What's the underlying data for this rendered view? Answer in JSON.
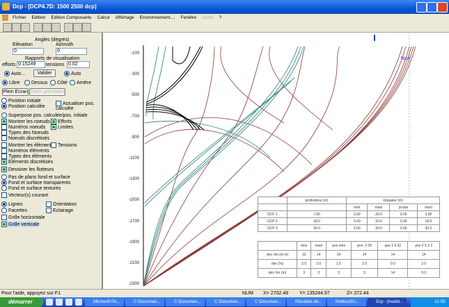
{
  "window": {
    "title": "Dcp - [DCP4.7D: 1500 2500 dcp]",
    "menu": [
      "Fichier",
      "Edition",
      "Edition Composants",
      "Calcul",
      "Affichage",
      "Environnement....",
      "Fenêtre",
      "Outils",
      "?"
    ]
  },
  "left_panel": {
    "angles_title": "Angles (degrés)",
    "elevation_label": "Elévation",
    "azimuth_label": "Azimuth",
    "elevation_value": "0",
    "azimuth_value": "0",
    "ratios_title": "Rapports de visualisation",
    "efforts_label": "efforts",
    "efforts_value": "0.15249",
    "tensions_label": "tensions",
    "tensions_value": "0.02",
    "auto_left": "Auto...",
    "validate_button": "Valider",
    "auto_right": "Auto",
    "views": [
      {
        "label": "Libre",
        "checked": true
      },
      {
        "label": "Dessus",
        "checked": false
      },
      {
        "label": "Côté",
        "checked": false
      },
      {
        "label": "Arrière",
        "checked": false
      }
    ],
    "fullscreen_button": "Plein Ecran",
    "zoom_previous_button": "Zoom précédent",
    "options": [
      [
        {
          "label": "Position initiale",
          "kind": "radio",
          "checked": false
        }
      ],
      [
        {
          "label": "Position calculée",
          "kind": "radio",
          "checked": true
        },
        {
          "label": "Actualiser pos. calculée",
          "kind": "checkbox",
          "checked": false
        }
      ],
      [
        {
          "label": "Superpose pos. calculée/pos. initiale",
          "kind": "radio",
          "checked": false
        }
      ],
      [
        {
          "label": "Montrer les noeuds",
          "kind": "checkbox",
          "checked": true
        },
        {
          "label": "Efforts",
          "kind": "checkbox",
          "checked": true
        }
      ],
      [
        {
          "label": "Numéros noeuds",
          "kind": "checkbox",
          "checked": false
        },
        {
          "label": "Limites",
          "kind": "checkbox",
          "checked": true
        }
      ],
      [
        {
          "label": "Types des Noeuds",
          "kind": "checkbox",
          "checked": false
        }
      ],
      [
        {
          "label": "Noeuds discrétisés",
          "kind": "checkbox",
          "checked": false
        }
      ],
      [
        {
          "label": "Montrer les éléments",
          "kind": "checkbox",
          "checked": false
        },
        {
          "label": "Tensions",
          "kind": "checkbox",
          "checked": false
        }
      ],
      [
        {
          "label": "Numéros éléments",
          "kind": "checkbox",
          "checked": false
        }
      ],
      [
        {
          "label": "Types des éléments",
          "kind": "checkbox",
          "checked": false
        }
      ],
      [
        {
          "label": "Eléments discrétisés",
          "kind": "checkbox",
          "checked": true
        }
      ],
      [
        {
          "label": "Dessiner les flotteurs",
          "kind": "checkbox",
          "checked": true
        }
      ],
      [
        {
          "label": "Pas de plans fond et surface",
          "kind": "radio",
          "checked": false
        }
      ],
      [
        {
          "label": "Fond et surface transparents",
          "kind": "radio",
          "checked": true
        }
      ],
      [
        {
          "label": "Fond et surface texturés",
          "kind": "radio",
          "checked": false
        }
      ],
      [
        {
          "label": "Vecteur(s) courant",
          "kind": "checkbox",
          "checked": false
        }
      ],
      [
        {
          "label": "Lignes",
          "kind": "radio",
          "checked": true
        },
        {
          "label": "Orientation",
          "kind": "checkbox",
          "checked": false
        }
      ],
      [
        {
          "label": "Facettes",
          "kind": "radio",
          "checked": false
        },
        {
          "label": "Eclairage",
          "kind": "checkbox",
          "checked": false
        }
      ],
      [
        {
          "label": "Grille horizontale",
          "kind": "checkbox",
          "checked": false
        }
      ],
      [
        {
          "label": "Grille verticale",
          "kind": "checkbox",
          "checked": true
        }
      ]
    ]
  },
  "view": {
    "depth_labels": [
      "-100",
      "-300",
      "-500",
      "-700",
      "-900",
      "-1100",
      "-1300",
      "-1500",
      "-1700",
      "-1900",
      "-2100",
      "-2300"
    ],
    "face_label": "face"
  },
  "table_top": {
    "header": [
      "",
      "profondeur (m)",
      "longueur (m)"
    ],
    "subheader": [
      "",
      "",
      "mini",
      "maxi",
      "pt bas",
      "maxi"
    ],
    "rows": [
      [
        "DCP 1",
        "7.00",
        "3.00",
        "30.0",
        "3.00",
        "3.00"
      ],
      [
        "DCP 2",
        "18.0",
        "3.00",
        "30.0",
        "3.00",
        "18.0"
      ],
      [
        "DCP 3",
        "30.0",
        "3.00",
        "30.0",
        "3.00",
        "30.0"
      ]
    ]
  },
  "table_bottom": {
    "header": [
      "",
      "mini",
      "maxi",
      "pos mini",
      "pos. 2 00",
      "pos 1 4 22",
      "pos 2 5 2 2"
    ],
    "rows": [
      [
        "dev. lim (m m)",
        "10",
        "14",
        "14",
        "14",
        "14",
        "14"
      ],
      [
        "dev (%)",
        "2.0",
        "2.0",
        "1.0",
        "2.0",
        "0.0",
        "2.0"
      ],
      [
        "dev. lim (m)",
        "3",
        "3",
        "3",
        "3",
        "14",
        "0.0"
      ]
    ]
  },
  "status": {
    "help": "Pour l'aide, appuyez sur F1",
    "num": "NUM",
    "x": "X= 2702.48",
    "y": "Y= 135244.97",
    "z": "Z= 372.44"
  },
  "taskbar": {
    "start": "démarrer",
    "buttons": [
      "Microsoft Po...",
      "C:\\Documen...",
      "C:\\Documen...",
      "C:\\Documen...",
      "C:\\Documen...",
      "Résultats de...",
      "Nobles201...",
      "Dcp - [modél..."
    ],
    "clock": "11:05"
  }
}
